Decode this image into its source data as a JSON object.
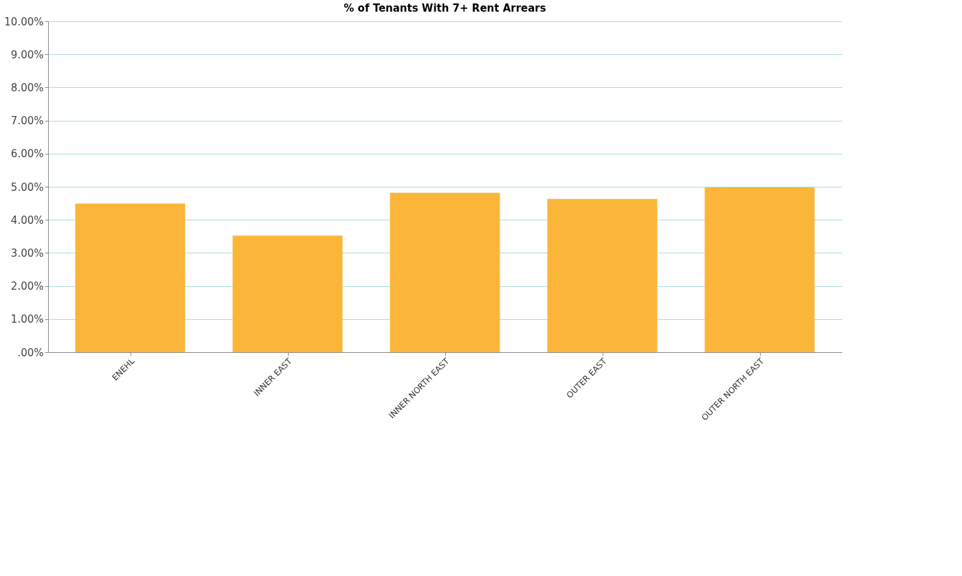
{
  "chart_data": {
    "type": "bar",
    "title": "% of Tenants With 7+ Rent Arrears",
    "categories": [
      "ENEHL",
      "INNER EAST",
      "INNER NORTH EAST",
      "OUTER EAST",
      "OUTER NORTH EAST"
    ],
    "values": [
      4.49,
      3.52,
      4.82,
      4.63,
      4.98
    ],
    "color": "#fbb63a",
    "ylim": [
      0,
      10
    ],
    "yticks": [
      {
        "value": 0,
        "label": ".00%"
      },
      {
        "value": 1,
        "label": "1.00%"
      },
      {
        "value": 2,
        "label": "2.00%"
      },
      {
        "value": 3,
        "label": "3.00%"
      },
      {
        "value": 4,
        "label": "4.00%"
      },
      {
        "value": 5,
        "label": "5.00%"
      },
      {
        "value": 6,
        "label": "6.00%"
      },
      {
        "value": 7,
        "label": "7.00%"
      },
      {
        "value": 8,
        "label": "8.00%"
      },
      {
        "value": 9,
        "label": "9.00%"
      },
      {
        "value": 10,
        "label": "10.00%"
      }
    ],
    "grid": "y"
  }
}
